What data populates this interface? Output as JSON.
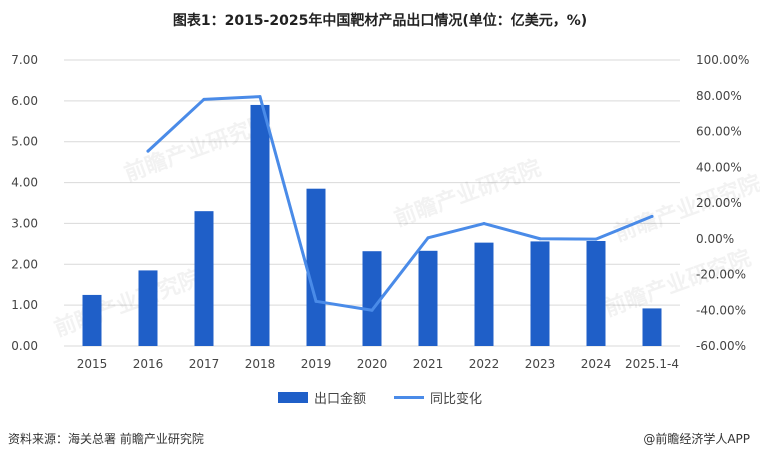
{
  "title": "图表1：2015-2025年中国靶材产品出口情况(单位：亿美元，%)",
  "source": "资料来源：海关总署  前瞻产业研究院",
  "brand": "@前瞻经济学人APP",
  "watermark": "前瞻产业研究院",
  "colors": {
    "bar": "#1f5fc8",
    "line": "#4a8be8",
    "grid": "#d9d9d9"
  },
  "chart_data": {
    "type": "bar",
    "title": "图表1：2015-2025年中国靶材产品出口情况(单位：亿美元，%)",
    "categories": [
      "2015",
      "2016",
      "2017",
      "2018",
      "2019",
      "2020",
      "2021",
      "2022",
      "2023",
      "2024",
      "2025.1-4"
    ],
    "series": [
      {
        "name": "出口金额",
        "type": "bar",
        "axis": "left",
        "values": [
          1.25,
          1.85,
          3.3,
          5.9,
          3.85,
          2.32,
          2.33,
          2.53,
          2.56,
          2.57,
          0.92
        ]
      },
      {
        "name": "同比变化",
        "type": "line",
        "axis": "right",
        "values": [
          null,
          49.0,
          78.0,
          79.5,
          -35.0,
          -40.0,
          0.5,
          8.5,
          0.0,
          -0.2,
          12.5
        ]
      }
    ],
    "y_left": {
      "min": 0,
      "max": 7,
      "step": 1,
      "tick_labels": [
        "0.00",
        "1.00",
        "2.00",
        "3.00",
        "4.00",
        "5.00",
        "6.00",
        "7.00"
      ]
    },
    "y_right": {
      "min": -60,
      "max": 100,
      "step": 20,
      "tick_labels": [
        "-60.00%",
        "-40.00%",
        "-20.00%",
        "0.00%",
        "20.00%",
        "40.00%",
        "60.00%",
        "80.00%",
        "100.00%"
      ]
    },
    "grid": true,
    "legend": "bottom"
  }
}
